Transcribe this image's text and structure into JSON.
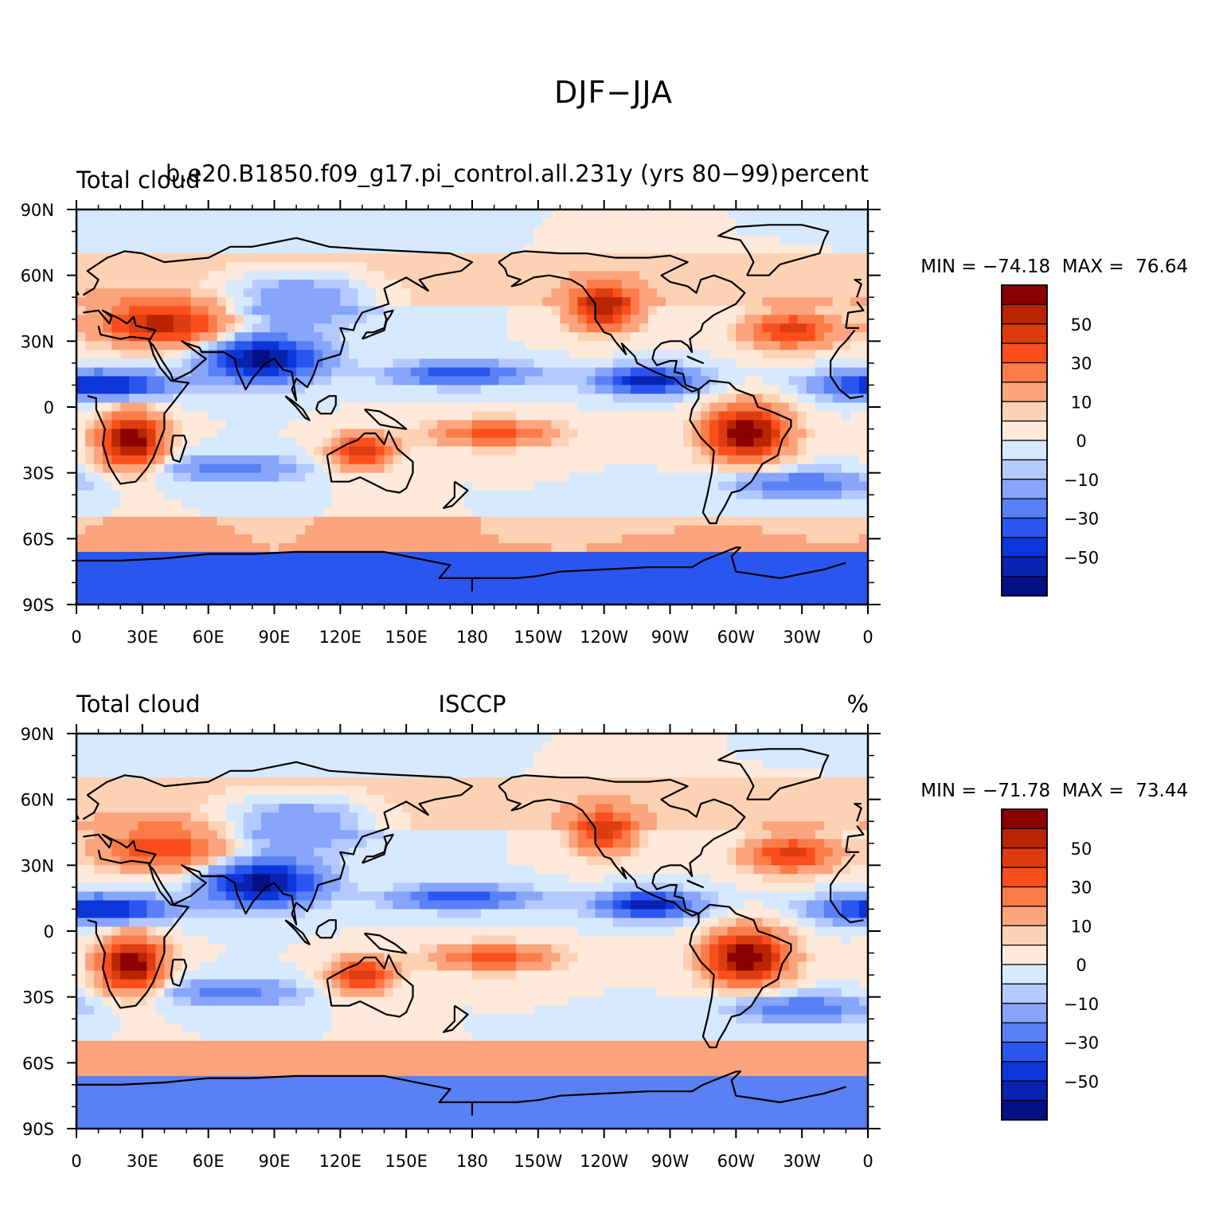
{
  "figure": {
    "title": "DJF−JJA"
  },
  "panels": [
    {
      "id": "model",
      "left_label": "Total cloud",
      "center_label": "b.e20.B1850.f09_g17.pi_control.all.231y (yrs 80−99)",
      "right_label": "percent",
      "min_label": "MIN = −74.18",
      "max_label": "MAX =  76.64"
    },
    {
      "id": "obs",
      "left_label": "Total cloud",
      "center_label": "ISCCP",
      "right_label": "%",
      "min_label": "MIN = −71.78",
      "max_label": "MAX =  73.44"
    }
  ],
  "chart_data": {
    "type": "heatmap",
    "projection": "cylindrical equidistant",
    "x_ticks": [
      "0",
      "30E",
      "60E",
      "90E",
      "120E",
      "150E",
      "180",
      "150W",
      "120W",
      "90W",
      "60W",
      "30W",
      "0"
    ],
    "y_ticks": [
      "90N",
      "60N",
      "30N",
      "0",
      "30S",
      "60S",
      "90S"
    ],
    "xlim": [
      0,
      360
    ],
    "ylim": [
      -90,
      90
    ],
    "colorbar": {
      "labels": [
        "50",
        "30",
        "10",
        "0",
        "−10",
        "−30",
        "−50"
      ],
      "colors": [
        "#8b0000",
        "#b82500",
        "#dc3c0f",
        "#fc4e1c",
        "#fb7c48",
        "#fca47d",
        "#fdd2b4",
        "#fee9da",
        "#d7e9ff",
        "#b4c9ff",
        "#86a5fb",
        "#5a80f5",
        "#2a56f0",
        "#0d36d9",
        "#0923b0",
        "#050f85"
      ]
    },
    "coastlines": true
  }
}
